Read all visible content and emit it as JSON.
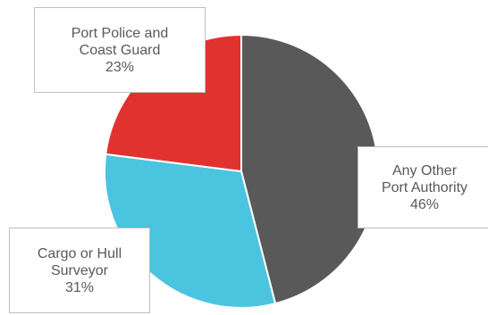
{
  "chart_data": {
    "type": "pie",
    "slices": [
      {
        "label_lines": [
          "Any Other",
          "Port Authority"
        ],
        "value": 46,
        "value_label": "46%",
        "color": "#595959"
      },
      {
        "label_lines": [
          "Cargo or Hull",
          "Surveyor"
        ],
        "value": 31,
        "value_label": "31%",
        "color": "#4bc4df"
      },
      {
        "label_lines": [
          "Port Police and",
          "Coast Guard"
        ],
        "value": 23,
        "value_label": "23%",
        "color": "#e0332f"
      }
    ],
    "start_angle_deg": 0,
    "direction": "clockwise",
    "legend": "none",
    "data_labels": "callout-boxes"
  }
}
